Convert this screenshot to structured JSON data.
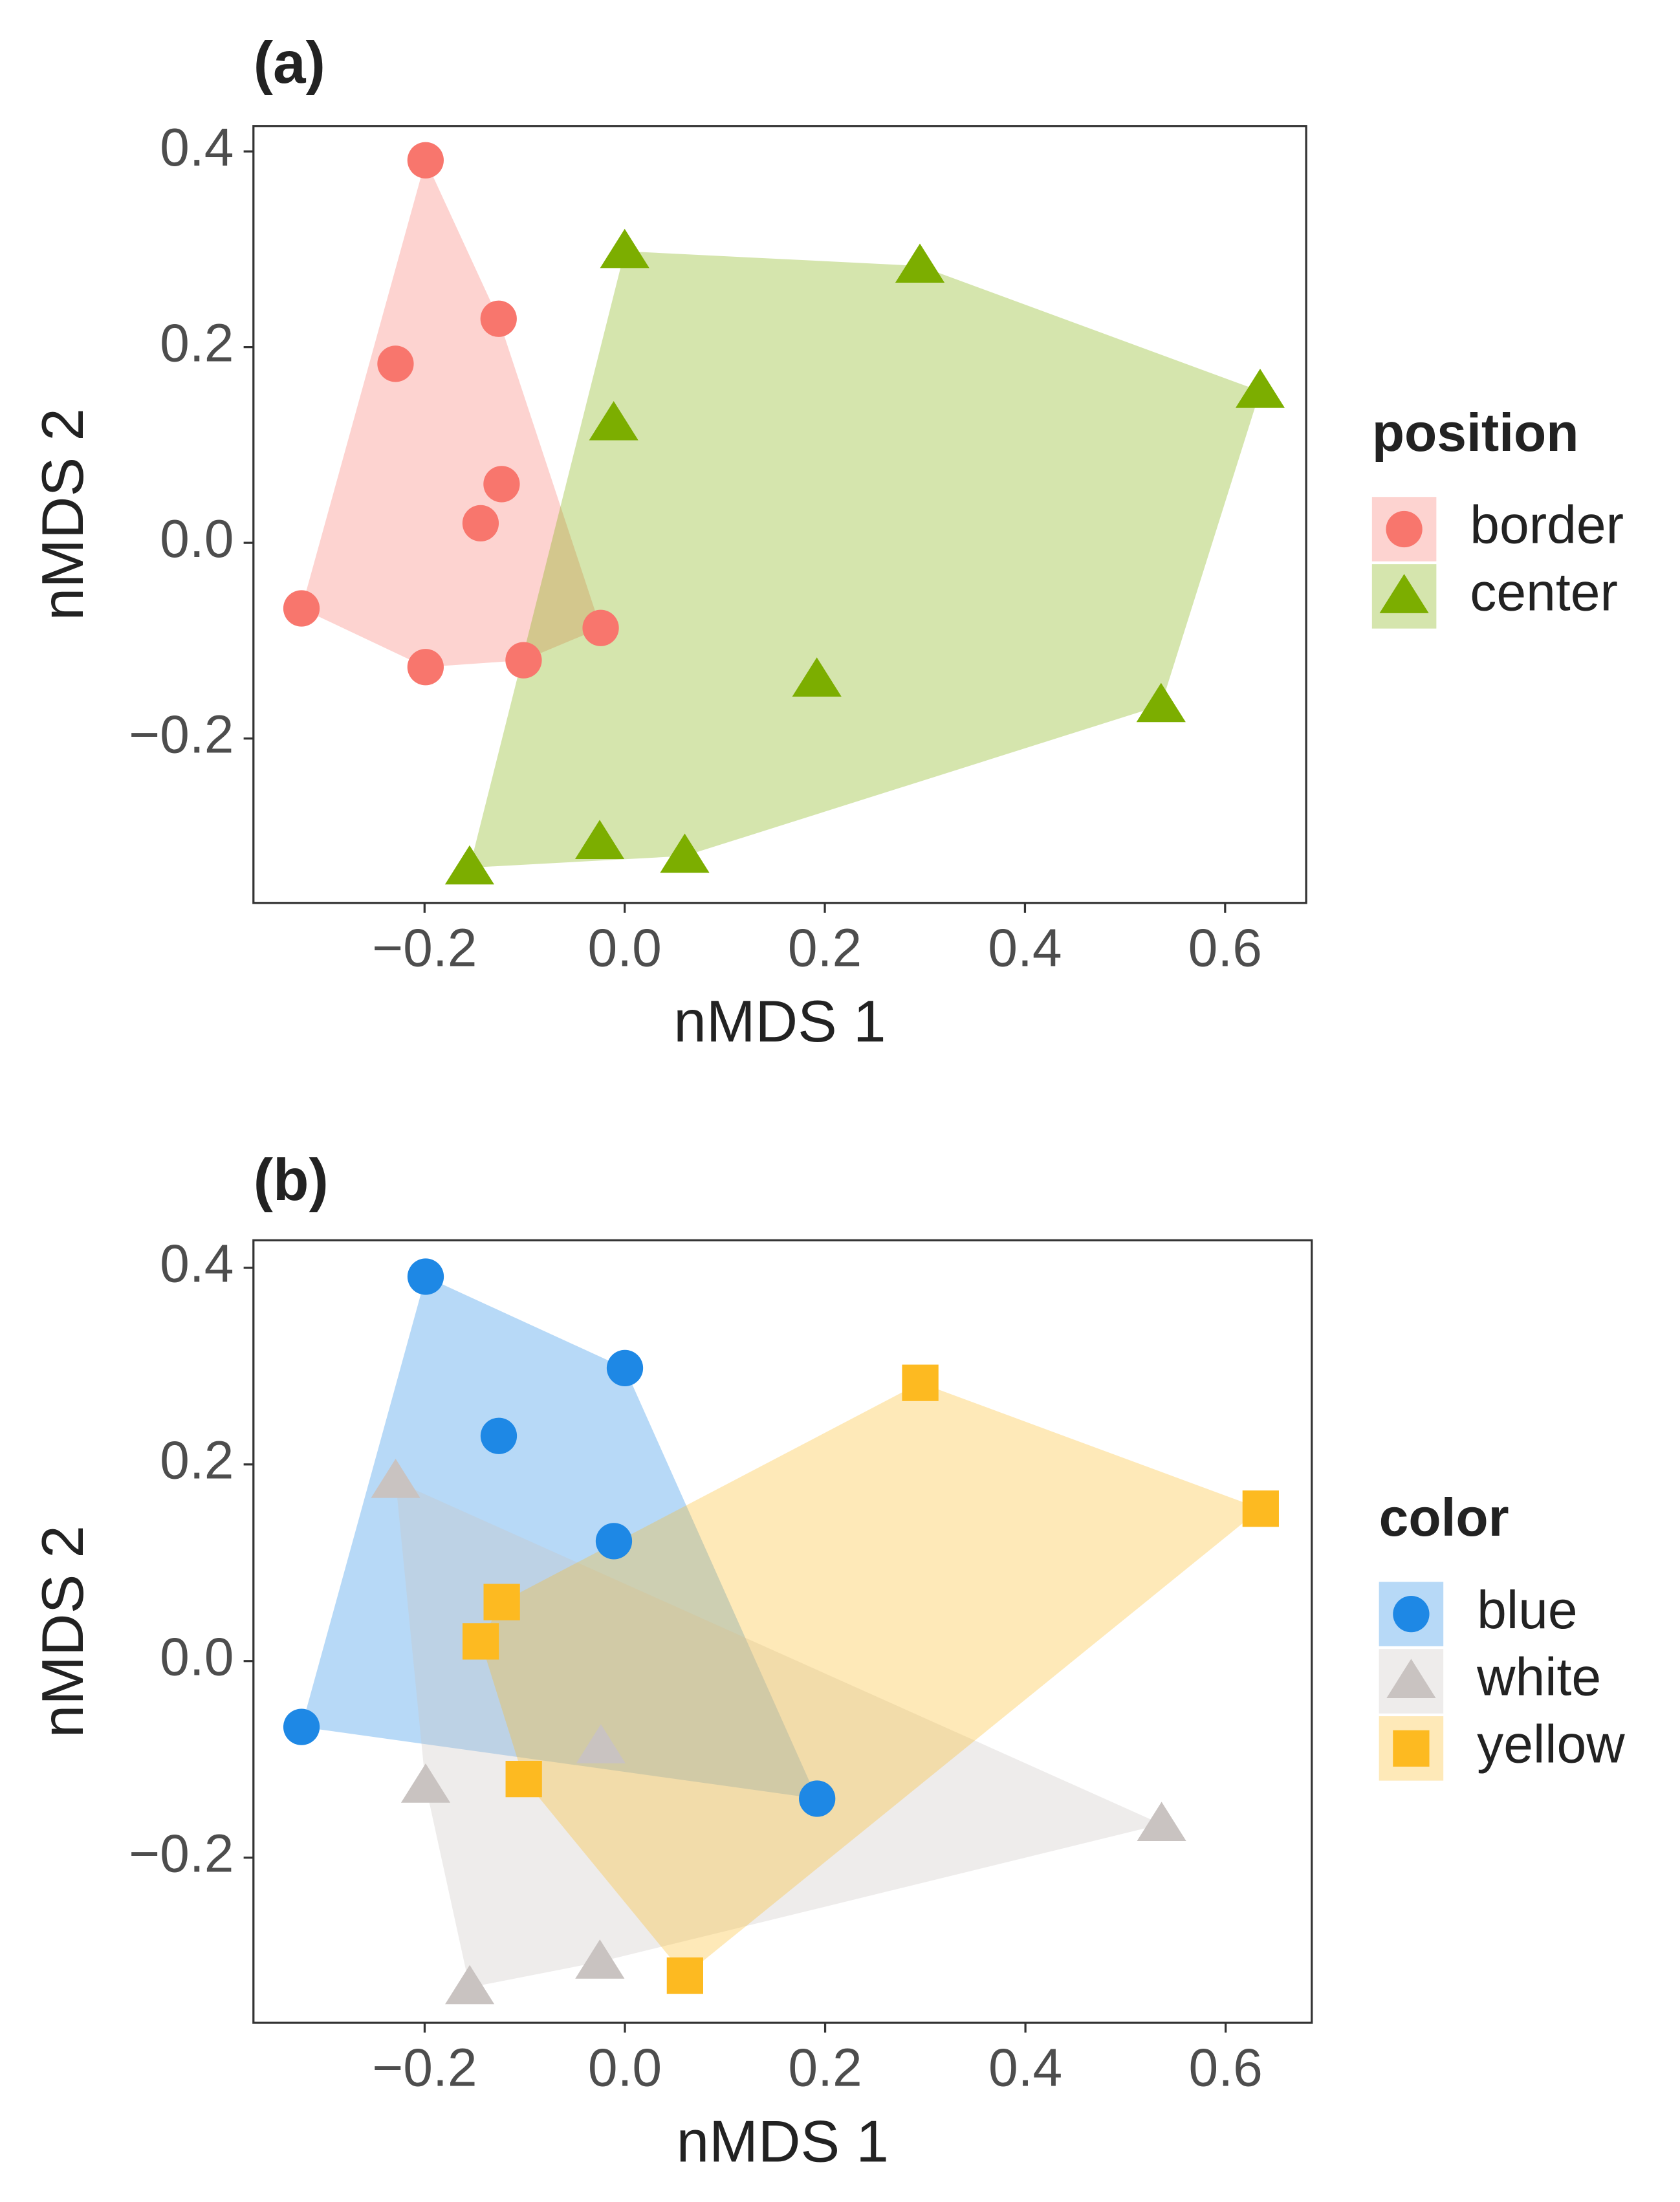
{
  "chart_data": [
    {
      "type": "scatter",
      "title": "(a)",
      "x_label": "nMDS 1",
      "y_label": "nMDS 2",
      "legend_title": "position",
      "legend_position": "right",
      "hull": true,
      "xlim": [
        -0.371,
        0.681
      ],
      "ylim": [
        -0.368,
        0.426
      ],
      "xticks": [
        {
          "value": -0.2,
          "label": "−0.2"
        },
        {
          "value": 0,
          "label": "0.0"
        },
        0.2,
        0.4,
        0.6
      ],
      "yticks": [
        {
          "value": -0.2,
          "label": "−0.2"
        },
        {
          "value": 0,
          "label": "0.0"
        },
        0.2,
        0.4
      ],
      "series": [
        {
          "name": "border",
          "color": "#F8766D",
          "shape": "circle",
          "x": [
            -0.199,
            -0.126,
            -0.229,
            -0.123,
            -0.144,
            -0.323,
            -0.199,
            -0.101,
            -0.024
          ],
          "y": [
            0.391,
            0.229,
            0.183,
            0.06,
            0.02,
            -0.067,
            -0.127,
            -0.12,
            -0.087
          ]
        },
        {
          "name": "center",
          "color": "#7CAE00",
          "shape": "triangle",
          "x": [
            0.0,
            0.295,
            0.635,
            -0.011,
            0.192,
            0.536,
            -0.025,
            0.06,
            -0.155
          ],
          "y": [
            0.298,
            0.283,
            0.155,
            0.122,
            -0.14,
            -0.166,
            -0.306,
            -0.32,
            -0.332
          ]
        }
      ]
    },
    {
      "type": "scatter",
      "title": "(b)",
      "x_label": "nMDS 1",
      "y_label": "nMDS 2",
      "legend_title": "color",
      "legend_position": "right",
      "hull": true,
      "xlim": [
        -0.371,
        0.686
      ],
      "ylim": [
        -0.368,
        0.428
      ],
      "xticks": [
        {
          "value": -0.2,
          "label": "−0.2"
        },
        {
          "value": 0,
          "label": "0.0"
        },
        0.2,
        0.4,
        0.6
      ],
      "yticks": [
        {
          "value": -0.2,
          "label": "−0.2"
        },
        {
          "value": 0,
          "label": "0.0"
        },
        0.2,
        0.4
      ],
      "series": [
        {
          "name": "blue",
          "color": "#1E88E5",
          "shape": "circle",
          "x": [
            -0.199,
            0.0,
            -0.126,
            -0.011,
            -0.323,
            0.192
          ],
          "y": [
            0.391,
            0.298,
            0.229,
            0.122,
            -0.067,
            -0.14
          ]
        },
        {
          "name": "white",
          "color": "#C9C3C1",
          "shape": "triangle",
          "x": [
            -0.229,
            -0.199,
            -0.024,
            0.536,
            -0.155,
            -0.025
          ],
          "y": [
            0.183,
            -0.127,
            -0.087,
            -0.166,
            -0.332,
            -0.306
          ]
        },
        {
          "name": "yellow",
          "color": "#FDBA21",
          "shape": "square",
          "x": [
            -0.123,
            -0.144,
            -0.101,
            0.295,
            0.635,
            0.06
          ],
          "y": [
            0.06,
            0.02,
            -0.12,
            0.283,
            0.155,
            -0.32
          ]
        }
      ]
    }
  ]
}
